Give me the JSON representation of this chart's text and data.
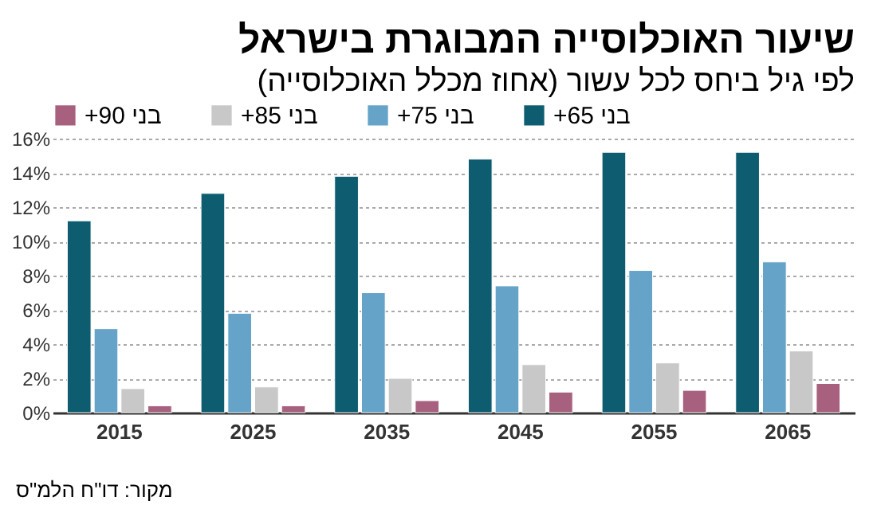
{
  "chart_data": {
    "type": "bar",
    "title": "שיעור האוכלוסייה המבוגרת בישראל",
    "subtitle": "לפי גיל ביחס לכל עשור (אחוז מכלל האוכלוסייה)",
    "categories": [
      "2015",
      "2025",
      "2035",
      "2045",
      "2055",
      "2065"
    ],
    "series": [
      {
        "name": "בני 65+",
        "color": "#0d5c70",
        "values": [
          11.2,
          12.8,
          13.8,
          14.8,
          15.2,
          15.2
        ]
      },
      {
        "name": "בני 75+",
        "color": "#65a3c8",
        "values": [
          4.9,
          5.8,
          7.0,
          7.4,
          8.3,
          8.8
        ]
      },
      {
        "name": "בני 85+",
        "color": "#c8c8c8",
        "values": [
          1.4,
          1.5,
          2.0,
          2.8,
          2.9,
          3.6
        ]
      },
      {
        "name": "בני 90+",
        "color": "#a8607f",
        "values": [
          0.4,
          0.4,
          0.7,
          1.2,
          1.3,
          1.7
        ]
      }
    ],
    "ylim": [
      0,
      16
    ],
    "yticks": [
      {
        "value": 0,
        "label": "0%"
      },
      {
        "value": 2,
        "label": "2%"
      },
      {
        "value": 4,
        "label": "4%"
      },
      {
        "value": 6,
        "label": "6%"
      },
      {
        "value": 8,
        "label": "8%"
      },
      {
        "value": 10,
        "label": "10%"
      },
      {
        "value": 12,
        "label": "12%"
      },
      {
        "value": 14,
        "label": "14%"
      },
      {
        "value": 16,
        "label": "16%"
      }
    ],
    "grid": "y",
    "legend": "top",
    "annotations": [
      "מקור: דו\"ח הלמ\"ס"
    ]
  }
}
